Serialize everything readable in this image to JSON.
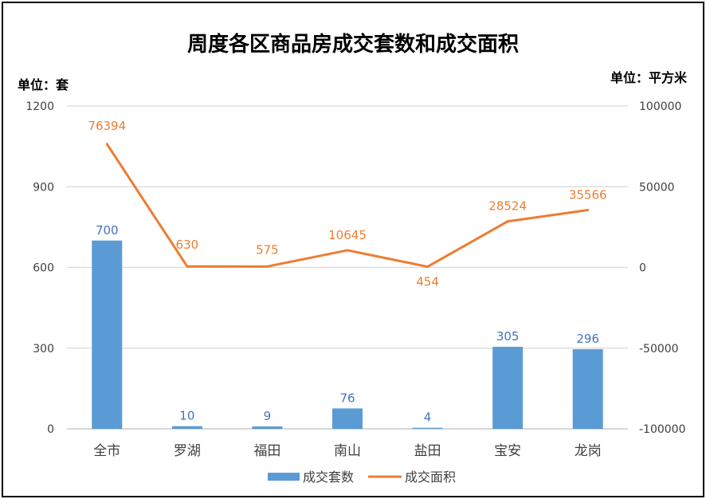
{
  "chart_data": {
    "type": "bar+line",
    "title": "周度各区商品房成交套数和成交面积",
    "left_unit": "单位：套",
    "right_unit": "单位：平方米",
    "categories": [
      "全市",
      "罗湖",
      "福田",
      "南山",
      "盐田",
      "宝安",
      "龙岗"
    ],
    "series": [
      {
        "name": "成交套数",
        "type": "bar",
        "axis": "left",
        "color": "#5b9bd5",
        "label_color": "#4472c4",
        "values": [
          700,
          10,
          9,
          76,
          4,
          305,
          296
        ]
      },
      {
        "name": "成交面积",
        "type": "line",
        "axis": "right",
        "color": "#ed7d31",
        "label_color": "#ed7d31",
        "values": [
          76394,
          630,
          575,
          10645,
          454,
          28524,
          35566
        ]
      }
    ],
    "y_left": {
      "min": 0,
      "max": 1200,
      "ticks": [
        0,
        300,
        600,
        900,
        1200
      ]
    },
    "y_right": {
      "min": -100000,
      "max": 100000,
      "ticks": [
        -100000,
        -50000,
        0,
        50000,
        100000
      ]
    },
    "grid": true,
    "legend": "bottom"
  }
}
